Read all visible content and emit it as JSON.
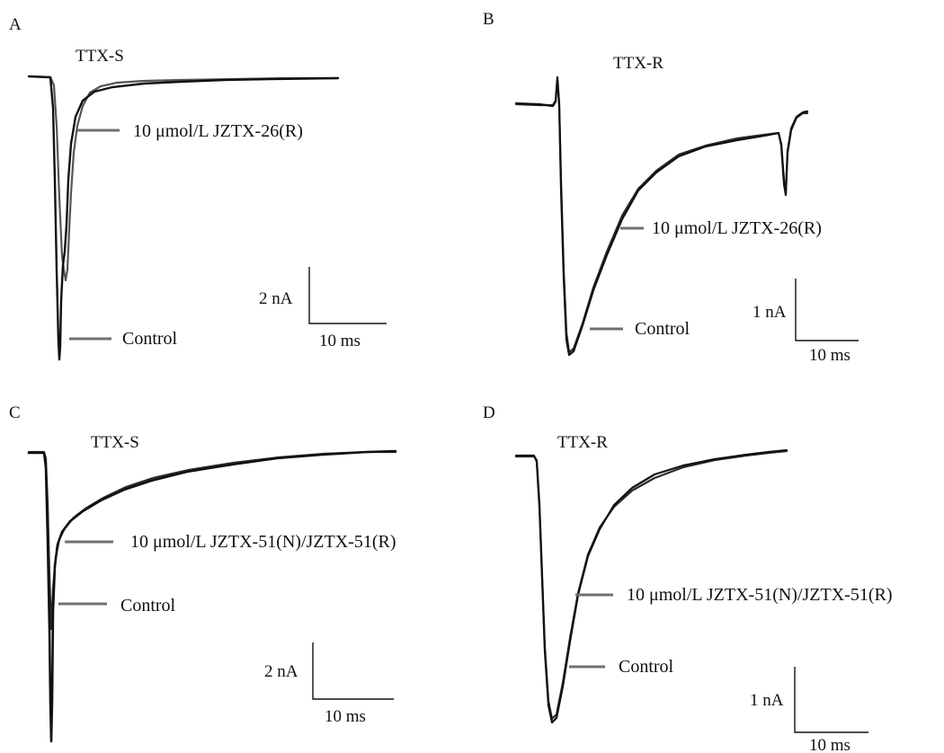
{
  "colors": {
    "control_trace": "#111111",
    "toxin_trace_A": "#555555",
    "toxin_trace_other": "#2a2a2a",
    "pointer_line": "#707070",
    "text": "#111111"
  },
  "panels": [
    {
      "letter": "A",
      "current_type": "TTX-S",
      "toxin_label": "10 μmol/L JZTX-26(R)",
      "control_label": "Control",
      "scale_current": "2 nA",
      "scale_time": "10 ms"
    },
    {
      "letter": "B",
      "current_type": "TTX-R",
      "toxin_label": "10 μmol/L JZTX-26(R)",
      "control_label": "Control",
      "scale_current": "1 nA",
      "scale_time": "10 ms"
    },
    {
      "letter": "C",
      "current_type": "TTX-S",
      "toxin_label": "10 μmol/L JZTX-51(N)/JZTX-51(R)",
      "control_label": "Control",
      "scale_current": "2 nA",
      "scale_time": "10 ms"
    },
    {
      "letter": "D",
      "current_type": "TTX-R",
      "toxin_label": "10 μmol/L JZTX-51(N)/JZTX-51(R)",
      "control_label": "Control",
      "scale_current": "1 nA",
      "scale_time": "10 ms"
    }
  ]
}
